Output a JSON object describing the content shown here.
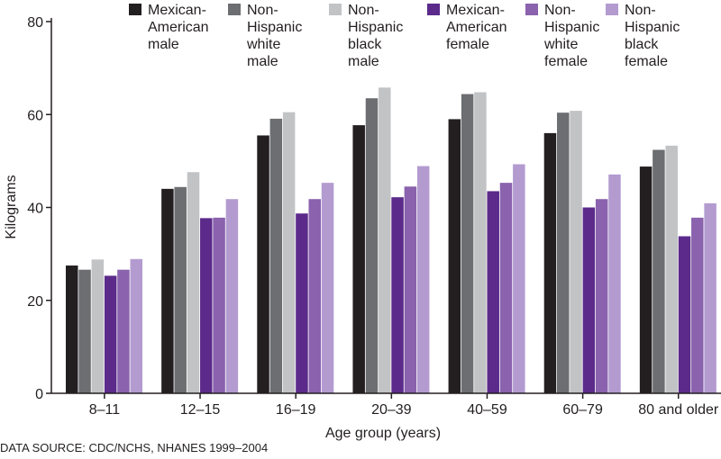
{
  "chart_data": {
    "type": "bar",
    "title": "",
    "xlabel": "Age group (years)",
    "ylabel": "Kilograms",
    "ylim": [
      0,
      80
    ],
    "yticks": [
      0,
      20,
      40,
      60,
      80
    ],
    "grid": false,
    "legend_position": "top",
    "categories": [
      "8–11",
      "12–15",
      "16–19",
      "20–39",
      "40–59",
      "60–79",
      "80 and older"
    ],
    "series": [
      {
        "name": "Mexican-American male",
        "legend_lines": [
          "Mexican-",
          "American",
          "male"
        ],
        "color": "#231f20",
        "values": [
          27.5,
          44,
          55.5,
          57.7,
          59,
          56,
          48.8
        ]
      },
      {
        "name": "Non-Hispanic white male",
        "legend_lines": [
          "Non-",
          "Hispanic",
          "white",
          "male"
        ],
        "color": "#6d6e71",
        "values": [
          26.6,
          44.4,
          59.1,
          63.5,
          64.4,
          60.4,
          52.4
        ]
      },
      {
        "name": "Non-Hispanic black male",
        "legend_lines": [
          "Non-",
          "Hispanic",
          "black",
          "male"
        ],
        "color": "#c2c3c5",
        "values": [
          28.8,
          47.6,
          60.5,
          65.8,
          64.8,
          60.8,
          53.3
        ]
      },
      {
        "name": "Mexican-American female",
        "legend_lines": [
          "Mexican-",
          "American",
          "female"
        ],
        "color": "#5b2a8a",
        "values": [
          25.3,
          37.7,
          38.7,
          42.2,
          43.5,
          40,
          33.8
        ]
      },
      {
        "name": "Non-Hispanic white female",
        "legend_lines": [
          "Non-",
          "Hispanic",
          "white",
          "female"
        ],
        "color": "#8a62ad",
        "values": [
          26.6,
          37.8,
          41.8,
          44.5,
          45.3,
          41.8,
          37.8
        ]
      },
      {
        "name": "Non-Hispanic black female",
        "legend_lines": [
          "Non-",
          "Hispanic",
          "black",
          "female"
        ],
        "color": "#b39bd0",
        "values": [
          28.9,
          41.8,
          45.3,
          48.9,
          49.3,
          47.1,
          40.9
        ]
      }
    ]
  },
  "source_note": "DATA SOURCE: CDC/NCHS, NHANES 1999–2004"
}
